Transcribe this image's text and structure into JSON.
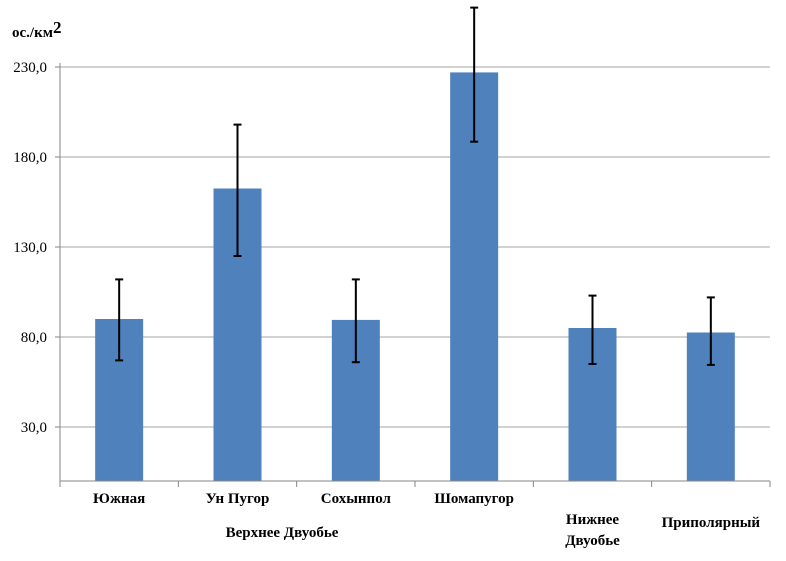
{
  "chart_data": {
    "type": "bar",
    "unit_label": "ос./км",
    "unit_superscript": "2",
    "categories": [
      [
        "Южная"
      ],
      [
        "Ун Пугор"
      ],
      [
        "Сохынпол"
      ],
      [
        "Шомапугор"
      ],
      [
        "Нижнее",
        "Двуобье"
      ],
      [
        "Приполярный"
      ]
    ],
    "group_label": "Верхнее Двуобье",
    "values": [
      90.0,
      162.5,
      89.5,
      227.0,
      85.0,
      82.5
    ],
    "error_low": [
      67.0,
      125.0,
      66.0,
      188.5,
      65.0,
      64.5
    ],
    "error_high": [
      112.0,
      198.0,
      112.0,
      263.0,
      103.0,
      102.0
    ],
    "yticks": [
      "30,0",
      "80,0",
      "130,0",
      "180,0",
      "230,0"
    ],
    "ytick_values": [
      30,
      80,
      130,
      180,
      230
    ],
    "ylim": [
      0,
      230
    ],
    "grid": true,
    "colors": {
      "bar": "#4F81BD",
      "grid": "#A6A6A6",
      "axis": "#868686",
      "error": "#000000"
    }
  }
}
